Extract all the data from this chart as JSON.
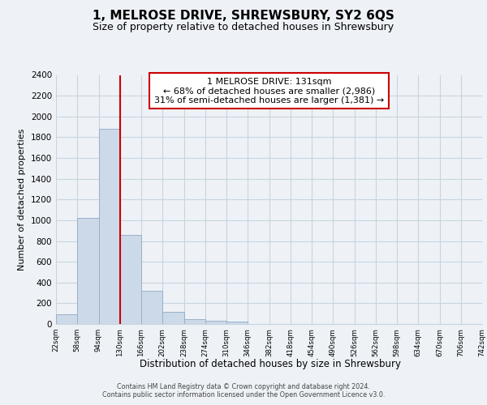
{
  "title": "1, MELROSE DRIVE, SHREWSBURY, SY2 6QS",
  "subtitle": "Size of property relative to detached houses in Shrewsbury",
  "xlabel": "Distribution of detached houses by size in Shrewsbury",
  "ylabel": "Number of detached properties",
  "bar_edges": [
    22,
    58,
    94,
    130,
    166,
    202,
    238,
    274,
    310,
    346,
    382,
    418,
    454,
    490,
    526,
    562,
    598,
    634,
    670,
    706,
    742
  ],
  "bar_heights": [
    90,
    1020,
    1880,
    855,
    320,
    115,
    50,
    35,
    20,
    0,
    0,
    0,
    0,
    0,
    0,
    0,
    0,
    0,
    0,
    0
  ],
  "bar_color": "#ccd9e8",
  "bar_edge_color": "#9ab0c8",
  "property_line_x": 130,
  "property_line_color": "#cc0000",
  "annotation_line1": "1 MELROSE DRIVE: 131sqm",
  "annotation_line2": "← 68% of detached houses are smaller (2,986)",
  "annotation_line3": "31% of semi-detached houses are larger (1,381) →",
  "annotation_box_color": "#ffffff",
  "annotation_box_edge": "#cc0000",
  "ylim": [
    0,
    2400
  ],
  "yticks": [
    0,
    200,
    400,
    600,
    800,
    1000,
    1200,
    1400,
    1600,
    1800,
    2000,
    2200,
    2400
  ],
  "tick_labels": [
    "22sqm",
    "58sqm",
    "94sqm",
    "130sqm",
    "166sqm",
    "202sqm",
    "238sqm",
    "274sqm",
    "310sqm",
    "346sqm",
    "382sqm",
    "418sqm",
    "454sqm",
    "490sqm",
    "526sqm",
    "562sqm",
    "598sqm",
    "634sqm",
    "670sqm",
    "706sqm",
    "742sqm"
  ],
  "footer_line1": "Contains HM Land Registry data © Crown copyright and database right 2024.",
  "footer_line2": "Contains public sector information licensed under the Open Government Licence v3.0.",
  "bg_color": "#eef2f7",
  "plot_bg_color": "#eef2f7",
  "grid_color": "#c8d4e0",
  "title_fontsize": 11,
  "subtitle_fontsize": 9
}
